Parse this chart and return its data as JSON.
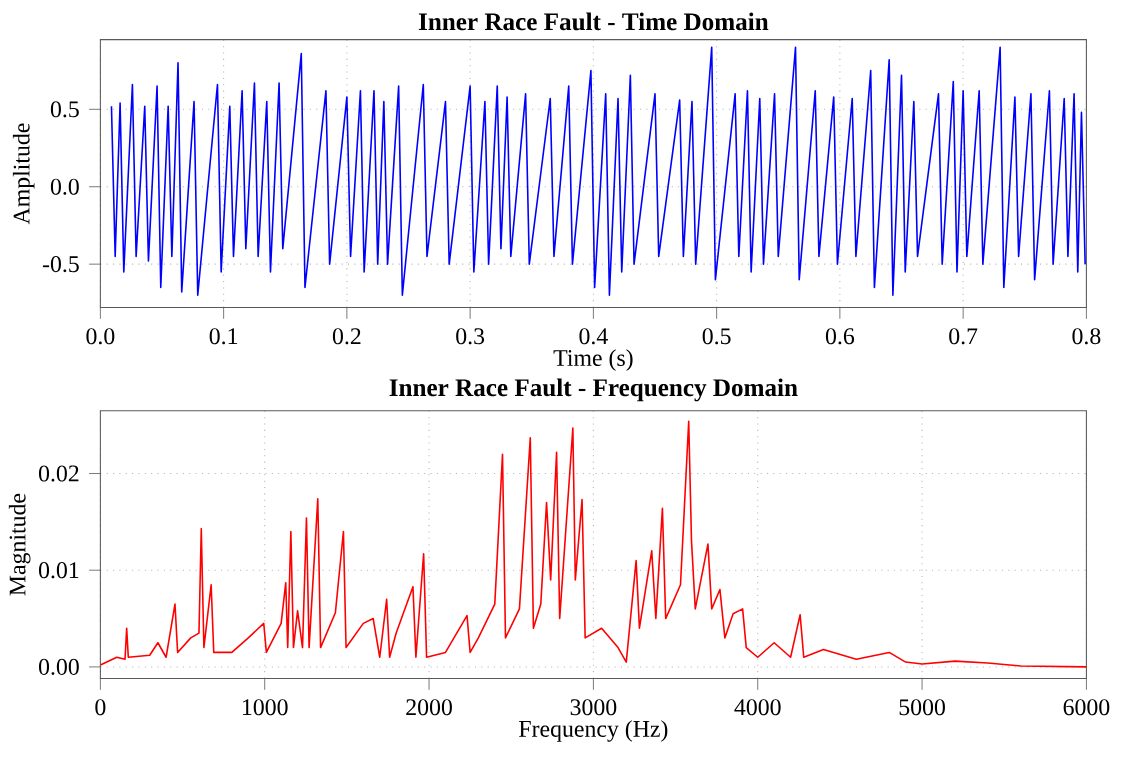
{
  "chart_data": [
    {
      "type": "line",
      "title": "Inner Race Fault - Time Domain",
      "xlabel": "Time (s)",
      "ylabel": "Amplitude",
      "xlim": [
        0,
        0.8
      ],
      "ylim": [
        -0.78,
        0.95
      ],
      "xticks": [
        {
          "value": 0,
          "label": "0.0"
        },
        0.1,
        0.2,
        0.3,
        0.4,
        0.5,
        0.6,
        0.7,
        0.8
      ],
      "yticks": [
        -0.5,
        {
          "value": 0,
          "label": "0.0"
        },
        0.5
      ],
      "grid": true,
      "x": [
        0.009,
        0.012,
        0.016,
        0.019,
        0.026,
        0.029,
        0.036,
        0.039,
        0.046,
        0.049,
        0.055,
        0.058,
        0.063,
        0.066,
        0.076,
        0.079,
        0.095,
        0.098,
        0.105,
        0.108,
        0.115,
        0.118,
        0.125,
        0.128,
        0.135,
        0.138,
        0.145,
        0.148,
        0.163,
        0.166,
        0.183,
        0.186,
        0.2,
        0.203,
        0.211,
        0.214,
        0.222,
        0.225,
        0.23,
        0.233,
        0.242,
        0.245,
        0.262,
        0.265,
        0.28,
        0.283,
        0.3,
        0.303,
        0.312,
        0.315,
        0.322,
        0.325,
        0.33,
        0.333,
        0.345,
        0.348,
        0.365,
        0.368,
        0.38,
        0.383,
        0.398,
        0.401,
        0.41,
        0.413,
        0.42,
        0.423,
        0.43,
        0.433,
        0.45,
        0.453,
        0.47,
        0.473,
        0.48,
        0.483,
        0.496,
        0.499,
        0.515,
        0.518,
        0.525,
        0.528,
        0.535,
        0.538,
        0.547,
        0.55,
        0.564,
        0.567,
        0.58,
        0.583,
        0.595,
        0.598,
        0.61,
        0.613,
        0.625,
        0.628,
        0.64,
        0.643,
        0.65,
        0.653,
        0.66,
        0.663,
        0.68,
        0.683,
        0.692,
        0.695,
        0.7,
        0.703,
        0.713,
        0.716,
        0.73,
        0.733,
        0.742,
        0.745,
        0.755,
        0.758,
        0.77,
        0.773,
        0.782,
        0.785,
        0.79,
        0.793,
        0.796,
        0.799
      ],
      "series": [
        {
          "color": "#0000ff",
          "values": [
            0.52,
            -0.45,
            0.54,
            -0.55,
            0.66,
            -0.45,
            0.52,
            -0.48,
            0.65,
            -0.65,
            0.52,
            -0.45,
            0.8,
            -0.68,
            0.55,
            -0.7,
            0.66,
            -0.55,
            0.52,
            -0.45,
            0.62,
            -0.4,
            0.67,
            -0.45,
            0.55,
            -0.55,
            0.67,
            -0.4,
            0.86,
            -0.65,
            0.62,
            -0.5,
            0.58,
            -0.45,
            0.62,
            -0.55,
            0.62,
            -0.5,
            0.55,
            -0.5,
            0.65,
            -0.7,
            0.66,
            -0.45,
            0.55,
            -0.5,
            0.65,
            -0.55,
            0.55,
            -0.5,
            0.65,
            -0.4,
            0.58,
            -0.45,
            0.6,
            -0.5,
            0.57,
            -0.45,
            0.65,
            -0.5,
            0.75,
            -0.65,
            0.6,
            -0.7,
            0.57,
            -0.55,
            0.72,
            -0.5,
            0.6,
            -0.45,
            0.56,
            -0.45,
            0.55,
            -0.5,
            0.9,
            -0.6,
            0.6,
            -0.45,
            0.62,
            -0.55,
            0.57,
            -0.5,
            0.6,
            -0.45,
            0.9,
            -0.6,
            0.62,
            -0.45,
            0.58,
            -0.5,
            0.57,
            -0.45,
            0.75,
            -0.65,
            0.82,
            -0.7,
            0.72,
            -0.55,
            0.55,
            -0.45,
            0.6,
            -0.5,
            0.68,
            -0.55,
            0.62,
            -0.45,
            0.62,
            -0.5,
            0.9,
            -0.65,
            0.58,
            -0.45,
            0.6,
            -0.6,
            0.62,
            -0.5,
            0.57,
            -0.45,
            0.6,
            -0.55,
            0.48,
            -0.5
          ]
        }
      ]
    },
    {
      "type": "line",
      "title": "Inner Race Fault - Frequency Domain",
      "xlabel": "Frequency (Hz)",
      "ylabel": "Magnitude",
      "xlim": [
        0,
        6000
      ],
      "ylim": [
        -0.0012,
        0.0265
      ],
      "xticks": [
        0,
        1000,
        2000,
        3000,
        4000,
        5000,
        6000
      ],
      "yticks": [
        {
          "value": 0,
          "label": "0.00"
        },
        0.01,
        0.02
      ],
      "grid": true,
      "x": [
        0,
        100,
        150,
        160,
        170,
        300,
        350,
        400,
        454,
        470,
        550,
        600,
        614,
        630,
        674,
        690,
        800,
        900,
        994,
        1010,
        1100,
        1128,
        1140,
        1159,
        1175,
        1200,
        1230,
        1254,
        1270,
        1323,
        1340,
        1430,
        1479,
        1495,
        1600,
        1660,
        1700,
        1742,
        1760,
        1800,
        1902,
        1920,
        1967,
        1985,
        2100,
        2231,
        2250,
        2300,
        2400,
        2447,
        2465,
        2550,
        2616,
        2635,
        2680,
        2715,
        2740,
        2776,
        2795,
        2875,
        2890,
        2931,
        2950,
        3050,
        3150,
        3200,
        3260,
        3280,
        3355,
        3380,
        3420,
        3440,
        3530,
        3580,
        3597,
        3620,
        3697,
        3720,
        3770,
        3800,
        3850,
        3908,
        3930,
        4000,
        4100,
        4200,
        4258,
        4280,
        4400,
        4600,
        4800,
        4900,
        5000,
        5200,
        5400,
        5600,
        6000
      ],
      "series": [
        {
          "color": "#ff0000",
          "values": [
            0.0002,
            0.001,
            0.0008,
            0.004,
            0.001,
            0.0012,
            0.0025,
            0.001,
            0.0065,
            0.0015,
            0.003,
            0.0035,
            0.0143,
            0.002,
            0.0085,
            0.0015,
            0.0015,
            0.003,
            0.0045,
            0.0015,
            0.0045,
            0.0087,
            0.002,
            0.014,
            0.002,
            0.0058,
            0.002,
            0.0154,
            0.002,
            0.0174,
            0.002,
            0.0056,
            0.014,
            0.002,
            0.0045,
            0.005,
            0.001,
            0.007,
            0.001,
            0.0035,
            0.0083,
            0.001,
            0.0117,
            0.001,
            0.0015,
            0.0053,
            0.0015,
            0.003,
            0.0065,
            0.022,
            0.003,
            0.006,
            0.0237,
            0.004,
            0.0065,
            0.017,
            0.009,
            0.0222,
            0.005,
            0.0247,
            0.009,
            0.0173,
            0.003,
            0.004,
            0.002,
            0.0005,
            0.011,
            0.004,
            0.012,
            0.005,
            0.0164,
            0.005,
            0.0085,
            0.0254,
            0.013,
            0.006,
            0.0127,
            0.006,
            0.008,
            0.003,
            0.0055,
            0.006,
            0.002,
            0.001,
            0.0025,
            0.001,
            0.0054,
            0.001,
            0.0018,
            0.0008,
            0.0015,
            0.0005,
            0.0003,
            0.0006,
            0.0004,
            0.0001,
            0.0
          ]
        }
      ]
    }
  ]
}
